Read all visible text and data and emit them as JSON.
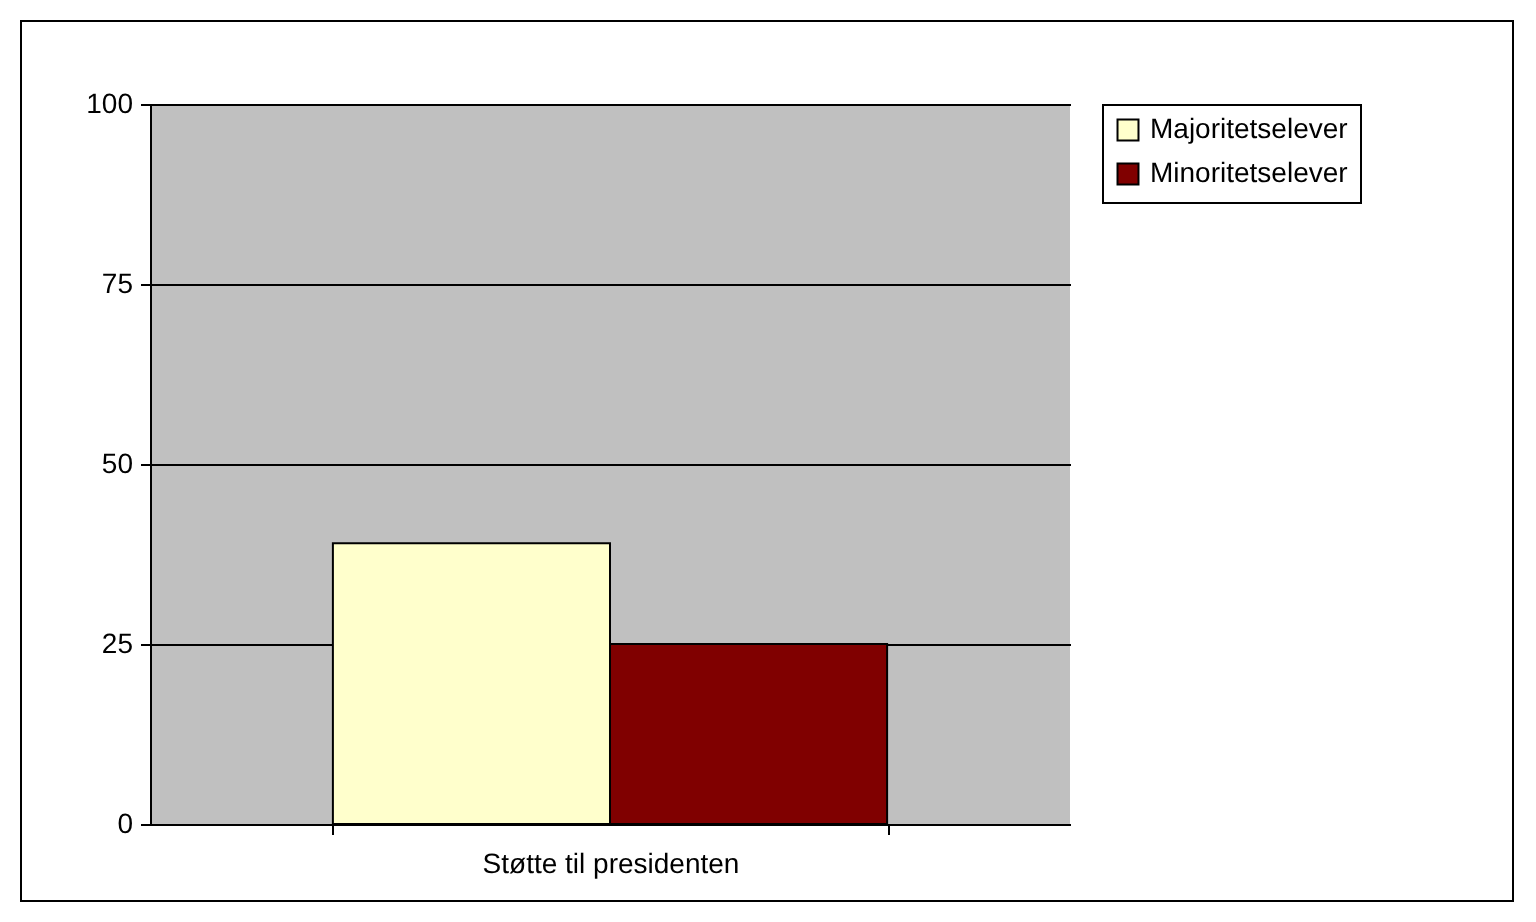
{
  "chart_data": {
    "type": "bar",
    "categories": [
      "Støtte til presidenten"
    ],
    "series": [
      {
        "name": "Majoritetselever",
        "color": "#ffffcc",
        "values": [
          39
        ]
      },
      {
        "name": "Minoritetselever",
        "color": "#800000",
        "values": [
          25
        ]
      }
    ],
    "ylim": [
      0,
      100
    ],
    "yticks": [
      0,
      25,
      50,
      75,
      100
    ],
    "grid": "y",
    "legend": "right"
  }
}
